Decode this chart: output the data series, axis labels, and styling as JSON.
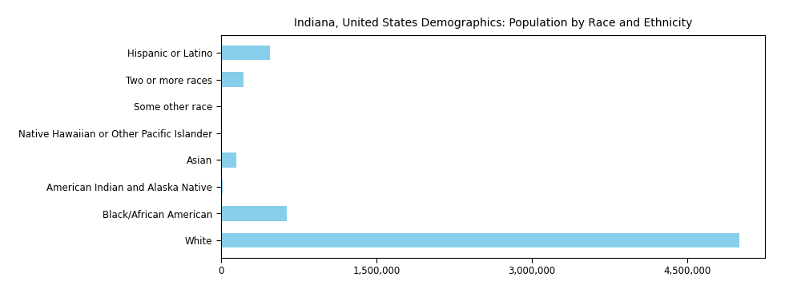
{
  "title": "Indiana, United States Demographics: Population by Race and Ethnicity",
  "categories": [
    "White",
    "Black/African American",
    "American Indian and Alaska Native",
    "Asian",
    "Native Hawaiian or Other Pacific Islander",
    "Some other race",
    "Two or more races",
    "Hispanic or Latino"
  ],
  "values": [
    5000000,
    632000,
    18000,
    147000,
    3500,
    9000,
    220000,
    470000
  ],
  "bar_color": "#87CEEB",
  "background_color": "#ffffff",
  "xlim": [
    0,
    5250000
  ],
  "xticks": [
    0,
    1500000,
    3000000,
    4500000
  ],
  "xticklabels": [
    "0",
    "1,500,000",
    "3,000,000",
    "4,500,000"
  ],
  "title_fontsize": 10,
  "tick_fontsize": 8.5,
  "bar_height": 0.55
}
